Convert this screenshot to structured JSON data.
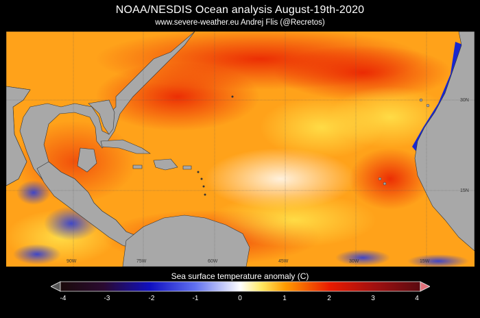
{
  "header": {
    "title": "NOAA/NESDIS   Ocean analysis    August-19th-2020",
    "subtitle": "www.severe-weather.eu   Andrej Flis (@Recretos)"
  },
  "map": {
    "latitude_labels": [
      "30N",
      "15N"
    ],
    "longitude_labels": [
      "90W",
      "75W",
      "60W",
      "45W",
      "30W",
      "15W"
    ]
  },
  "legend": {
    "title": "Sea surface temperature anomaly (C)",
    "ticks": [
      "-4",
      "-3",
      "-2",
      "-1",
      "0",
      "1",
      "2",
      "3",
      "4"
    ],
    "colors": {
      "min": "#1a0a0a",
      "cold": "#1010c0",
      "zero": "#ffffff",
      "warm": "#ff9a00",
      "hot": "#e81a00",
      "max": "#5a0a10",
      "land": "#a8a8a8"
    }
  }
}
